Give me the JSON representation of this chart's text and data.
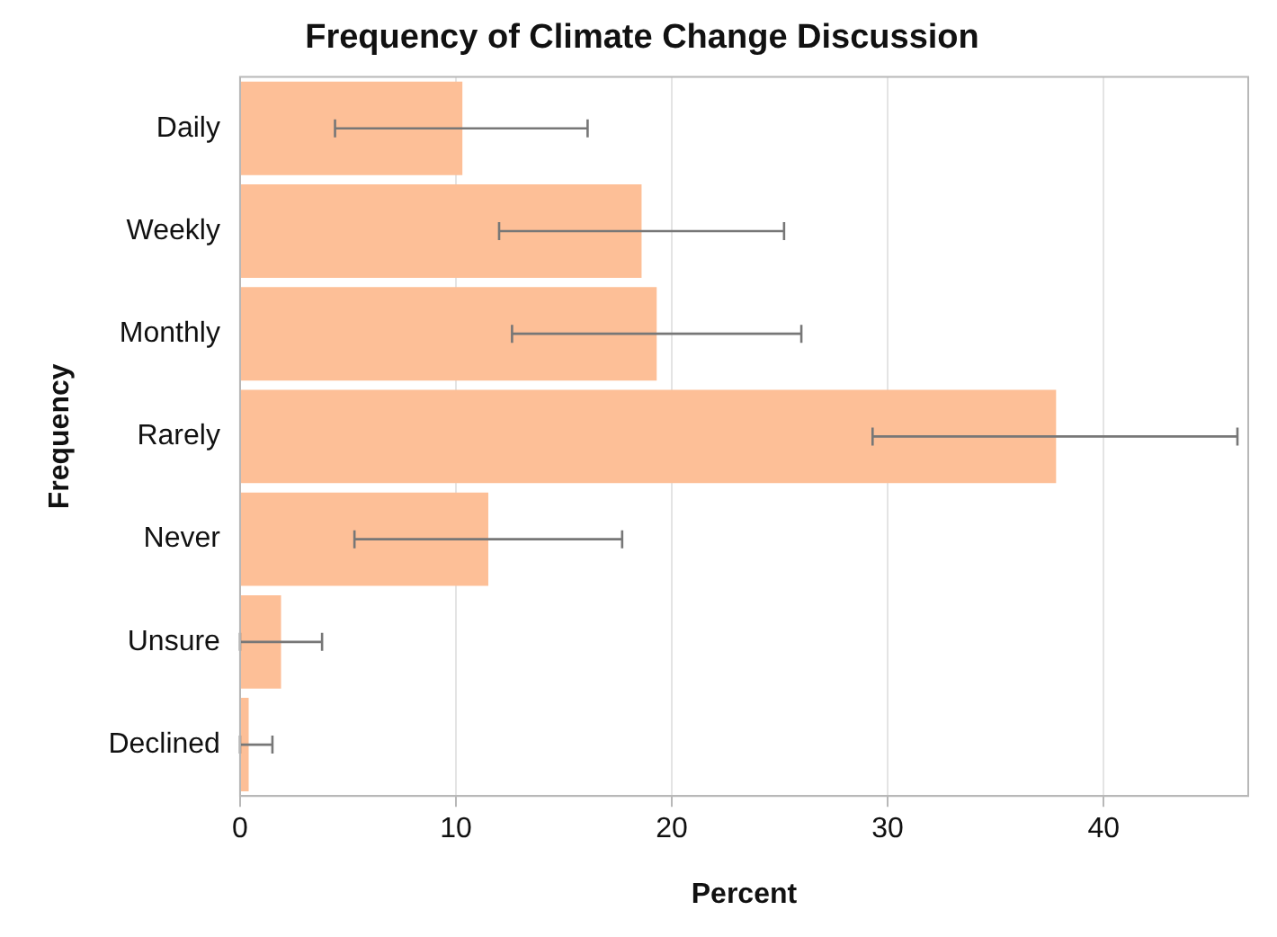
{
  "chart_data": {
    "type": "bar",
    "orientation": "horizontal",
    "title": "Frequency of Climate Change Discussion",
    "xlabel": "Percent",
    "ylabel": "Frequency",
    "categories": [
      "Daily",
      "Weekly",
      "Monthly",
      "Rarely",
      "Never",
      "Unsure",
      "Declined"
    ],
    "values": [
      10.3,
      18.6,
      19.3,
      37.8,
      11.5,
      1.9,
      0.4
    ],
    "errors": [
      [
        4.4,
        16.1
      ],
      [
        12.0,
        25.2
      ],
      [
        12.6,
        26.0
      ],
      [
        29.3,
        46.2
      ],
      [
        5.3,
        17.7
      ],
      [
        0,
        3.8
      ],
      [
        0,
        1.5
      ]
    ],
    "color": "#fdbf97",
    "xlim": [
      0,
      46.7
    ],
    "xticks": [
      0,
      10,
      20,
      30,
      40
    ],
    "grid": "x",
    "legend": false
  }
}
